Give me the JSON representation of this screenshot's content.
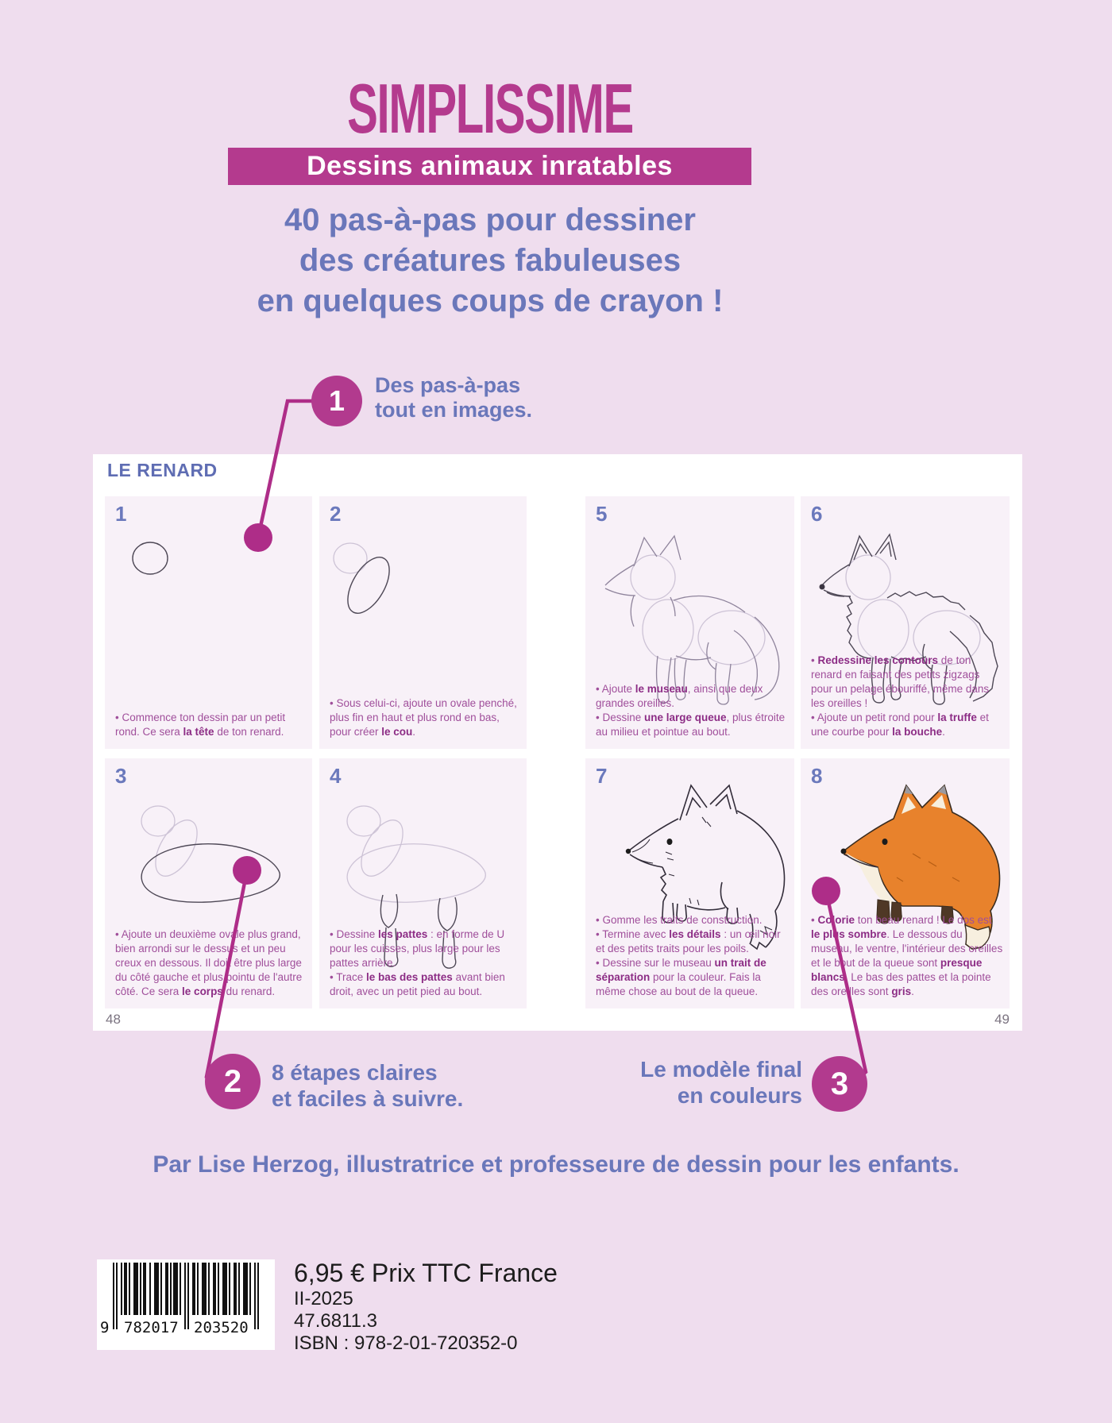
{
  "header": {
    "title": "SIMPLISSIME",
    "banner": "Dessins animaux inratables",
    "tagline_lines": [
      "40 pas-à-pas pour dessiner",
      "des créatures fabuleuses",
      "en quelques coups de crayon !"
    ]
  },
  "callouts": [
    {
      "num": "1",
      "lines": [
        "Des pas-à-pas",
        "tout en images."
      ]
    },
    {
      "num": "2",
      "lines": [
        "8 étapes claires",
        "et faciles à suivre."
      ]
    },
    {
      "num": "3",
      "lines": [
        "Le modèle final",
        "en couleurs"
      ]
    }
  ],
  "spread": {
    "heading": "LE RENARD",
    "page_left": "48",
    "page_right": "49",
    "steps": [
      {
        "num": "1",
        "segments": [
          {
            "t": "• Commence ton dessin par un petit rond. Ce sera ",
            "b": false
          },
          {
            "t": "la tête",
            "b": true
          },
          {
            "t": " de ton renard.",
            "b": false
          }
        ]
      },
      {
        "num": "2",
        "segments": [
          {
            "t": "• Sous celui-ci, ajoute un ovale penché, plus fin en haut et plus rond en bas, pour créer ",
            "b": false
          },
          {
            "t": "le cou",
            "b": true
          },
          {
            "t": ".",
            "b": false
          }
        ]
      },
      {
        "num": "3",
        "segments": [
          {
            "t": "• Ajoute un deuxième ovale plus grand, bien arrondi sur le dessus et un peu creux en dessous. Il doit être plus large du côté gauche et plus pointu de l'autre côté. Ce sera ",
            "b": false
          },
          {
            "t": "le corps",
            "b": true
          },
          {
            "t": " du renard.",
            "b": false
          }
        ]
      },
      {
        "num": "4",
        "segments": [
          {
            "t": "• Dessine ",
            "b": false
          },
          {
            "t": "les pattes",
            "b": true
          },
          {
            "t": " : en forme de U pour les cuisses, plus large pour les pattes arrière.\n• Trace ",
            "b": false
          },
          {
            "t": "le bas des pattes",
            "b": true
          },
          {
            "t": " avant bien droit, avec un petit pied au bout.",
            "b": false
          }
        ]
      },
      {
        "num": "5",
        "segments": [
          {
            "t": "• Ajoute ",
            "b": false
          },
          {
            "t": "le museau",
            "b": true
          },
          {
            "t": ", ainsi que deux grandes oreilles.\n• Dessine ",
            "b": false
          },
          {
            "t": "une large queue",
            "b": true
          },
          {
            "t": ", plus étroite au milieu et pointue au bout.",
            "b": false
          }
        ]
      },
      {
        "num": "6",
        "segments": [
          {
            "t": "• ",
            "b": false
          },
          {
            "t": "Redessine les contours",
            "b": true
          },
          {
            "t": " de ton renard en faisant des petits zigzags pour un pelage ébouriffé, même dans les oreilles !\n• Ajoute un petit rond pour ",
            "b": false
          },
          {
            "t": "la truffe",
            "b": true
          },
          {
            "t": " et une courbe pour ",
            "b": false
          },
          {
            "t": "la bouche",
            "b": true
          },
          {
            "t": ".",
            "b": false
          }
        ]
      },
      {
        "num": "7",
        "segments": [
          {
            "t": "• Gomme les traits de construction.\n• Termine avec ",
            "b": false
          },
          {
            "t": "les détails",
            "b": true
          },
          {
            "t": " : un œil noir et des petits traits pour les poils.\n• Dessine sur le museau ",
            "b": false
          },
          {
            "t": "un trait de séparation",
            "b": true
          },
          {
            "t": " pour la couleur. Fais la même chose au bout de la queue.",
            "b": false
          }
        ]
      },
      {
        "num": "8",
        "segments": [
          {
            "t": "• ",
            "b": false
          },
          {
            "t": "Colorie",
            "b": true
          },
          {
            "t": " ton beau renard ! Le dos est ",
            "b": false
          },
          {
            "t": "le plus sombre",
            "b": true
          },
          {
            "t": ". Le dessous du museau, le ventre, l'intérieur des oreilles et le bout de la queue sont ",
            "b": false
          },
          {
            "t": "presque blancs",
            "b": true
          },
          {
            "t": ". Le bas des pattes et la pointe des oreilles sont ",
            "b": false
          },
          {
            "t": "gris",
            "b": true
          },
          {
            "t": ".",
            "b": false
          }
        ]
      }
    ]
  },
  "footer": {
    "author": "Par Lise Herzog, illustratrice et professeure de dessin pour les enfants.",
    "barcode_groups": [
      "9",
      "782017",
      "203520"
    ],
    "price": "6,95 € Prix TTC France",
    "edition": "II-2025",
    "ref": "47.6811.3",
    "isbn": "ISBN : 978-2-01-720352-0"
  },
  "colors": {
    "background": "#efddee",
    "magenta": "#b43a8e",
    "blue": "#6a77ba",
    "step_text": "#a04f9b",
    "step_bold": "#8c2c85",
    "fox_orange": "#e8822c"
  }
}
